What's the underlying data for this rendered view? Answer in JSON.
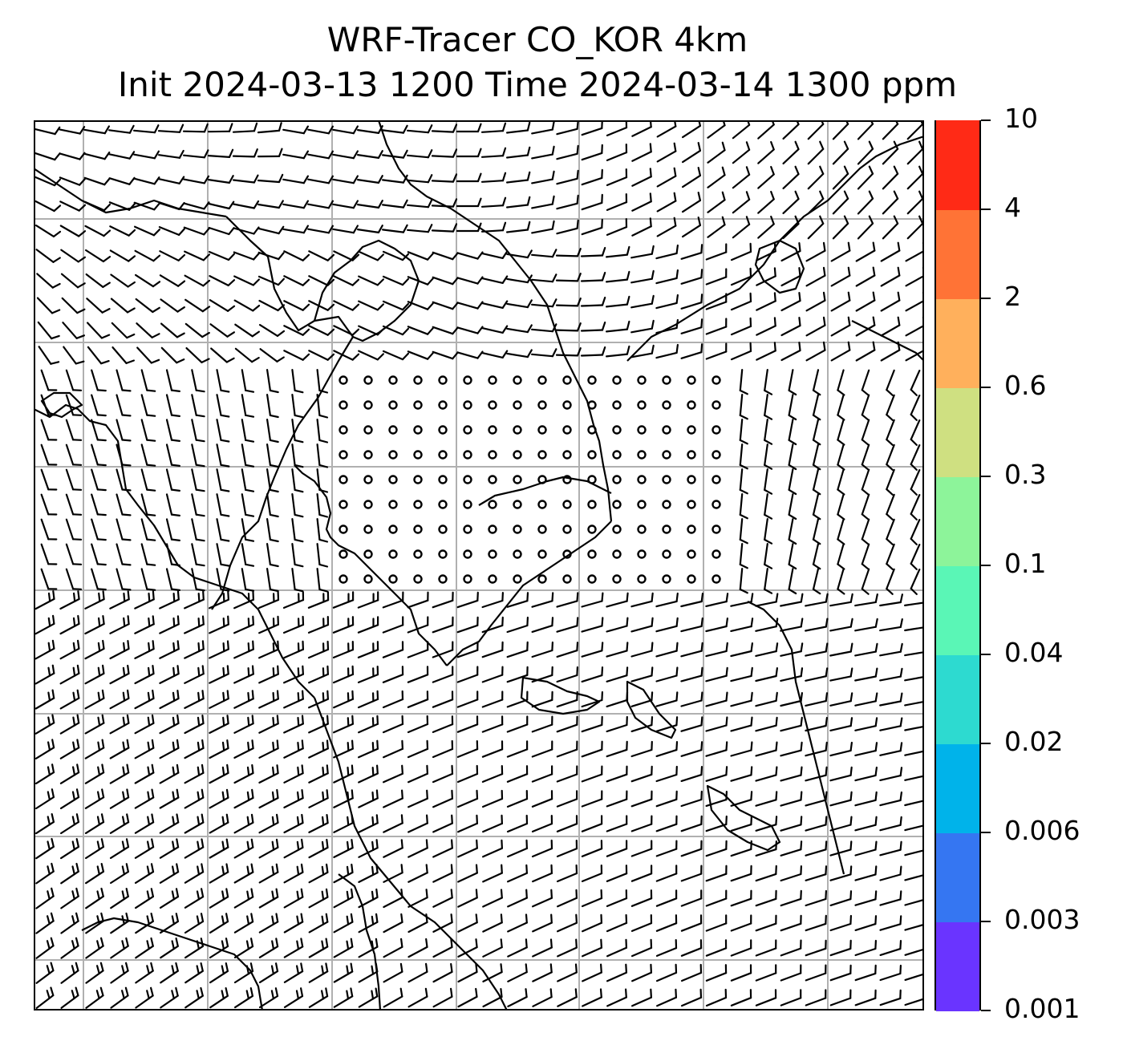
{
  "title": {
    "line1": "WRF-Tracer CO_KOR 4km",
    "line2": "Init 2024-03-13 1200 Time 2024-03-14 1300 ppm"
  },
  "map": {
    "variable": "CO tracer concentration",
    "units": "ppm",
    "gridlines": true,
    "gridline_color": "#b0b0b0",
    "coastline_color": "#000000"
  },
  "colorbar": {
    "levels": [
      "0.001",
      "0.003",
      "0.006",
      "0.02",
      "0.04",
      "0.1",
      "0.3",
      "0.6",
      "2",
      "4",
      "10"
    ],
    "colors": [
      "#6a34ff",
      "#3576f2",
      "#00b3ea",
      "#2ddad0",
      "#5af6b6",
      "#8df49a",
      "#cfe081",
      "#ffb05c",
      "#ff7336",
      "#ff2a16"
    ]
  }
}
